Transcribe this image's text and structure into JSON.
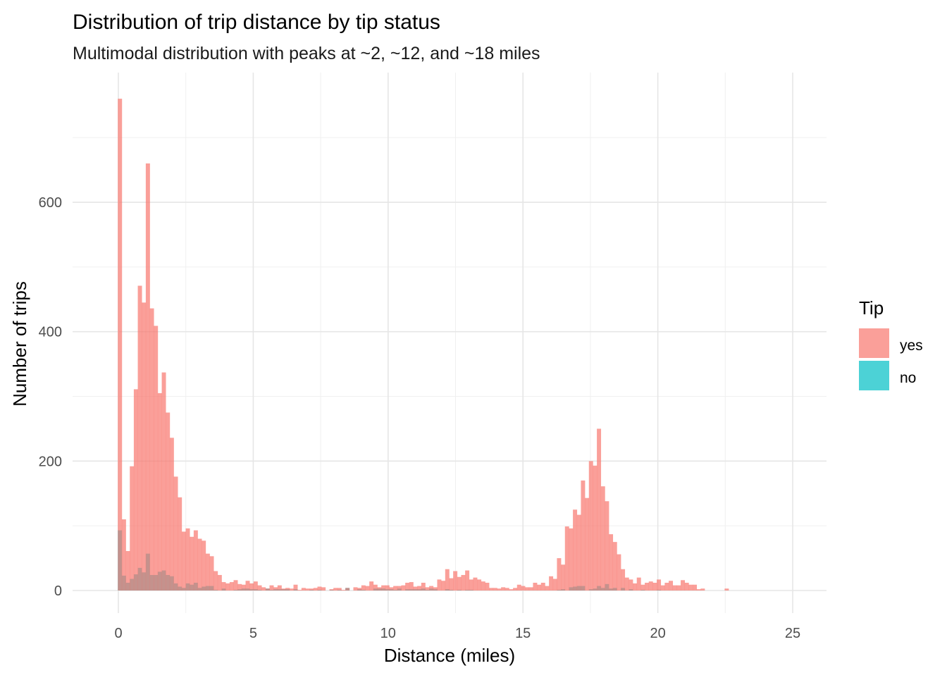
{
  "chart_data": {
    "type": "bar",
    "subtype": "histogram-overlay",
    "title": "Distribution of trip distance by tip status",
    "subtitle": "Multimodal distribution with peaks at ~2, ~12, and ~18 miles",
    "xlabel": "Distance (miles)",
    "ylabel": "Number of trips",
    "xlim": [
      -1.7,
      26.3
    ],
    "ylim": [
      -35,
      800
    ],
    "x_ticks": [
      "0",
      "5",
      "10",
      "15",
      "20",
      "25"
    ],
    "x_tick_values": [
      0,
      5,
      10,
      15,
      20,
      25
    ],
    "y_ticks": [
      "0",
      "200",
      "400",
      "600"
    ],
    "y_tick_values": [
      0,
      200,
      400,
      600
    ],
    "grid": true,
    "legend": {
      "title": "Tip",
      "position": "right",
      "entries": [
        "yes",
        "no"
      ]
    },
    "colors": {
      "yes": "#F8766D",
      "no": "#00BFC4"
    },
    "bin_start": -0.02,
    "bin_width": 0.148,
    "series": [
      {
        "name": "no",
        "values": [
          93,
          23,
          12,
          18,
          25,
          35,
          28,
          57,
          24,
          24,
          29,
          31,
          24,
          22,
          11,
          6,
          4,
          11,
          9,
          12,
          4,
          6,
          7,
          7,
          1,
          0,
          3,
          0,
          0,
          1,
          2,
          3,
          3,
          2,
          2,
          1,
          0,
          3,
          1,
          2,
          2,
          2,
          2,
          0,
          2,
          0,
          0,
          0,
          1,
          0,
          1,
          0,
          0,
          1,
          0,
          1,
          0,
          4,
          0,
          0,
          2,
          1,
          0,
          0,
          3,
          3,
          3,
          2,
          2,
          1,
          3,
          0,
          2,
          2,
          2,
          2,
          3,
          1,
          3,
          2,
          0,
          0,
          2,
          1,
          0,
          1,
          0,
          1,
          1,
          0,
          0,
          0,
          0,
          0,
          0,
          0,
          0,
          0,
          0,
          0,
          0,
          0,
          0,
          0,
          0,
          0,
          0,
          0,
          0,
          0,
          1,
          2,
          0,
          5,
          6,
          7,
          7,
          0,
          2,
          3,
          7,
          4,
          10,
          3,
          4,
          0,
          4,
          0,
          2,
          0,
          0,
          1,
          0,
          0,
          0,
          1,
          0,
          0,
          0,
          0,
          0,
          0,
          0,
          0,
          0,
          0,
          0,
          0,
          0,
          0,
          0,
          0,
          0
        ]
      },
      {
        "name": "yes",
        "values": [
          760,
          110,
          61,
          192,
          311,
          471,
          445,
          660,
          436,
          409,
          305,
          337,
          275,
          236,
          176,
          144,
          91,
          96,
          83,
          93,
          80,
          77,
          57,
          53,
          30,
          24,
          13,
          11,
          13,
          16,
          10,
          9,
          15,
          11,
          14,
          8,
          5,
          3,
          8,
          5,
          8,
          3,
          4,
          3,
          9,
          1,
          4,
          3,
          3,
          4,
          6,
          5,
          0,
          2,
          4,
          4,
          1,
          4,
          0,
          5,
          4,
          8,
          7,
          14,
          9,
          5,
          8,
          8,
          5,
          7,
          7,
          8,
          12,
          13,
          6,
          7,
          12,
          5,
          7,
          5,
          17,
          15,
          33,
          19,
          30,
          21,
          24,
          31,
          17,
          20,
          17,
          14,
          12,
          4,
          4,
          3,
          5,
          4,
          2,
          4,
          9,
          7,
          5,
          5,
          12,
          9,
          12,
          7,
          22,
          18,
          50,
          40,
          99,
          96,
          125,
          117,
          170,
          143,
          200,
          193,
          250,
          161,
          138,
          87,
          75,
          56,
          33,
          20,
          17,
          11,
          20,
          9,
          12,
          14,
          12,
          17,
          8,
          12,
          15,
          8,
          8,
          16,
          12,
          9,
          9,
          2,
          3,
          0,
          0,
          0,
          0,
          0,
          3
        ]
      }
    ]
  }
}
